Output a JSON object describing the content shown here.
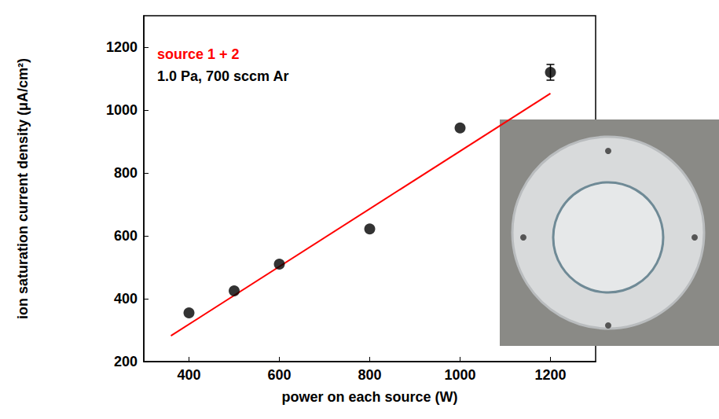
{
  "chart_data": {
    "type": "scatter",
    "x": [
      400,
      500,
      600,
      800,
      1000,
      1200
    ],
    "values": [
      355,
      425,
      510,
      622,
      943,
      1120
    ],
    "errors": [
      null,
      null,
      null,
      null,
      null,
      25
    ],
    "color": "#000000",
    "marker": "circle",
    "fit": {
      "type": "line",
      "x": [
        360,
        1200
      ],
      "values": [
        282,
        1053
      ],
      "color": "#ff0000",
      "line_style": "solid"
    },
    "annotations": [
      {
        "text": "source 1 + 2",
        "color": "#ff0000"
      },
      {
        "text": "1.0 Pa, 700 sccm Ar",
        "color": "#000000"
      }
    ],
    "x_label": "power on each source (W)",
    "y_label": "ion saturation current density (μA/cm²)",
    "xlim": [
      300,
      1300
    ],
    "xticks": [
      400,
      600,
      800,
      1000,
      1200
    ],
    "ylim": [
      200,
      1300
    ],
    "yticks": [
      200,
      400,
      600,
      800,
      1000,
      1200
    ],
    "grid": false
  }
}
